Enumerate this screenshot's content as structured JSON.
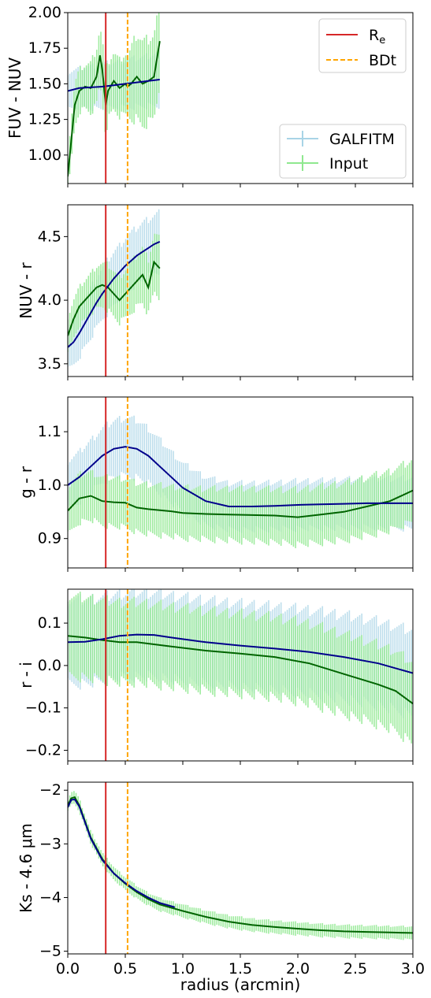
{
  "figure": {
    "xlabel": "radius (arcmin)",
    "xticks": [
      "0.0",
      "0.5",
      "1.0",
      "1.5",
      "2.0",
      "2.5",
      "3.0"
    ],
    "colors": {
      "galfitm_band": "#a8d4e6",
      "galfitm_line": "#00008b",
      "input_band": "#8fe88f",
      "input_line": "#006400",
      "re_line": "#d62728",
      "bdt_line": "#ffa500"
    },
    "legend_top": {
      "re_label": "R",
      "re_sub": "e",
      "bdt_label": "BDt"
    },
    "legend_bottom": {
      "galfitm_label": "GALFITM",
      "input_label": "Input"
    }
  },
  "chart_data": [
    {
      "type": "line",
      "ylabel": "FUV - NUV",
      "xlim": [
        0,
        3.0
      ],
      "ylim": [
        0.8,
        2.0
      ],
      "yticks": [
        "1.00",
        "1.25",
        "1.50",
        "1.75",
        "2.00"
      ],
      "vlines": {
        "Re": 0.33,
        "BDt": 0.52
      },
      "series": [
        {
          "name": "GALFITM",
          "x": [
            0.0,
            0.1,
            0.2,
            0.3,
            0.4,
            0.5,
            0.6,
            0.7,
            0.8
          ],
          "y": [
            1.45,
            1.47,
            1.475,
            1.48,
            1.49,
            1.5,
            1.51,
            1.52,
            1.53
          ],
          "err": [
            0.13,
            0.14,
            0.15,
            0.16,
            0.16,
            0.17,
            0.17,
            0.18,
            0.19
          ]
        },
        {
          "name": "Input",
          "x": [
            0.0,
            0.03,
            0.06,
            0.1,
            0.15,
            0.2,
            0.25,
            0.28,
            0.3,
            0.33,
            0.35,
            0.4,
            0.45,
            0.5,
            0.52,
            0.55,
            0.6,
            0.65,
            0.7,
            0.75,
            0.8
          ],
          "y": [
            0.85,
            1.1,
            1.35,
            1.45,
            1.48,
            1.47,
            1.55,
            1.7,
            1.6,
            1.35,
            1.45,
            1.52,
            1.47,
            1.5,
            1.48,
            1.5,
            1.55,
            1.5,
            1.52,
            1.55,
            1.8
          ],
          "err": [
            0.15,
            0.15,
            0.15,
            0.15,
            0.15,
            0.18,
            0.2,
            0.2,
            0.22,
            0.22,
            0.2,
            0.2,
            0.2,
            0.22,
            0.2,
            0.25,
            0.3,
            0.3,
            0.3,
            0.3,
            0.3
          ]
        }
      ],
      "legend": "top-right"
    },
    {
      "type": "line",
      "ylabel": "NUV - r",
      "xlim": [
        0,
        3.0
      ],
      "ylim": [
        3.4,
        4.75
      ],
      "yticks": [
        "3.5",
        "4.0",
        "4.5"
      ],
      "vlines": {
        "Re": 0.33,
        "BDt": 0.52
      },
      "series": [
        {
          "name": "GALFITM",
          "x": [
            0.0,
            0.05,
            0.1,
            0.15,
            0.2,
            0.25,
            0.3,
            0.35,
            0.4,
            0.45,
            0.5,
            0.55,
            0.6,
            0.65,
            0.7,
            0.75,
            0.8
          ],
          "y": [
            3.63,
            3.67,
            3.74,
            3.82,
            3.9,
            3.98,
            4.05,
            4.11,
            4.17,
            4.22,
            4.27,
            4.31,
            4.35,
            4.38,
            4.41,
            4.44,
            4.46
          ],
          "err": [
            0.18,
            0.18,
            0.19,
            0.19,
            0.2,
            0.2,
            0.2,
            0.21,
            0.21,
            0.21,
            0.22,
            0.22,
            0.22,
            0.23,
            0.23,
            0.23,
            0.24
          ]
        },
        {
          "name": "Input",
          "x": [
            0.0,
            0.05,
            0.1,
            0.15,
            0.2,
            0.25,
            0.3,
            0.35,
            0.4,
            0.45,
            0.5,
            0.55,
            0.6,
            0.65,
            0.7,
            0.75,
            0.8
          ],
          "y": [
            3.72,
            3.85,
            3.95,
            4.0,
            4.05,
            4.1,
            4.12,
            4.1,
            4.05,
            4.0,
            4.05,
            4.1,
            4.15,
            4.2,
            4.1,
            4.3,
            4.25
          ],
          "err": [
            0.15,
            0.15,
            0.15,
            0.16,
            0.16,
            0.17,
            0.17,
            0.18,
            0.18,
            0.18,
            0.19,
            0.2,
            0.2,
            0.22,
            0.22,
            0.23,
            0.24
          ]
        }
      ]
    },
    {
      "type": "line",
      "ylabel": "g - r",
      "xlim": [
        0,
        3.0
      ],
      "ylim": [
        0.845,
        1.165
      ],
      "yticks": [
        "0.9",
        "1.0",
        "1.1"
      ],
      "vlines": {
        "Re": 0.33,
        "BDt": 0.52
      },
      "series": [
        {
          "name": "GALFITM",
          "x": [
            0.0,
            0.1,
            0.2,
            0.3,
            0.4,
            0.5,
            0.6,
            0.7,
            0.8,
            0.9,
            1.0,
            1.2,
            1.4,
            1.6,
            1.8,
            2.0,
            2.2,
            2.4,
            2.6,
            2.8,
            3.0
          ],
          "y": [
            1.0,
            1.015,
            1.035,
            1.055,
            1.068,
            1.072,
            1.068,
            1.055,
            1.035,
            1.015,
            0.995,
            0.97,
            0.96,
            0.96,
            0.961,
            0.963,
            0.964,
            0.965,
            0.966,
            0.966,
            0.966
          ],
          "err": [
            0.045,
            0.047,
            0.049,
            0.051,
            0.053,
            0.055,
            0.054,
            0.052,
            0.05,
            0.048,
            0.046,
            0.045,
            0.044,
            0.044,
            0.044,
            0.045,
            0.045,
            0.046,
            0.046,
            0.047,
            0.047
          ]
        },
        {
          "name": "Input",
          "x": [
            0.0,
            0.1,
            0.2,
            0.3,
            0.4,
            0.5,
            0.6,
            0.7,
            0.8,
            0.9,
            1.0,
            1.2,
            1.4,
            1.6,
            1.8,
            2.0,
            2.2,
            2.4,
            2.6,
            2.8,
            3.0
          ],
          "y": [
            0.952,
            0.975,
            0.98,
            0.97,
            0.968,
            0.967,
            0.958,
            0.955,
            0.953,
            0.951,
            0.948,
            0.946,
            0.945,
            0.944,
            0.943,
            0.94,
            0.945,
            0.95,
            0.96,
            0.97,
            0.99
          ],
          "err": [
            0.045,
            0.045,
            0.045,
            0.045,
            0.046,
            0.046,
            0.046,
            0.047,
            0.047,
            0.047,
            0.048,
            0.048,
            0.049,
            0.05,
            0.05,
            0.052,
            0.053,
            0.054,
            0.055,
            0.056,
            0.057
          ]
        }
      ]
    },
    {
      "type": "line",
      "ylabel": "r - i",
      "xlim": [
        0,
        3.0
      ],
      "ylim": [
        -0.225,
        0.18
      ],
      "yticks": [
        "0.1",
        "0.0",
        "−0.1",
        "−0.2"
      ],
      "ytick_values": [
        0.1,
        0.0,
        -0.1,
        -0.2
      ],
      "vlines": {
        "Re": 0.33,
        "BDt": 0.52
      },
      "series": [
        {
          "name": "GALFITM",
          "x": [
            0.0,
            0.15,
            0.3,
            0.45,
            0.6,
            0.75,
            0.9,
            1.2,
            1.5,
            1.8,
            2.1,
            2.4,
            2.7,
            3.0
          ],
          "y": [
            0.055,
            0.056,
            0.062,
            0.07,
            0.073,
            0.072,
            0.066,
            0.055,
            0.047,
            0.04,
            0.032,
            0.02,
            0.005,
            -0.018
          ],
          "err": [
            0.1,
            0.1,
            0.1,
            0.1,
            0.1,
            0.1,
            0.1,
            0.1,
            0.1,
            0.1,
            0.1,
            0.1,
            0.1,
            0.1
          ]
        },
        {
          "name": "Input",
          "x": [
            0.0,
            0.15,
            0.3,
            0.45,
            0.6,
            0.75,
            0.9,
            1.2,
            1.5,
            1.8,
            2.1,
            2.4,
            2.7,
            2.85,
            3.0
          ],
          "y": [
            0.07,
            0.066,
            0.06,
            0.055,
            0.055,
            0.05,
            0.045,
            0.035,
            0.028,
            0.02,
            0.005,
            -0.02,
            -0.045,
            -0.06,
            -0.09
          ],
          "err": [
            0.095,
            0.095,
            0.095,
            0.095,
            0.095,
            0.095,
            0.095,
            0.095,
            0.095,
            0.095,
            0.095,
            0.095,
            0.095,
            0.095,
            0.095
          ]
        }
      ]
    },
    {
      "type": "line",
      "ylabel": "Ks - 4.6 μm",
      "xlim": [
        0,
        3.0
      ],
      "ylim": [
        -5.05,
        -1.85
      ],
      "yticks": [
        "−2",
        "−3",
        "−4",
        "−5"
      ],
      "ytick_values": [
        -2,
        -3,
        -4,
        -5
      ],
      "vlines": {
        "Re": 0.33,
        "BDt": 0.52
      },
      "series": [
        {
          "name": "GALFITM",
          "x": [
            0.0,
            0.03,
            0.06,
            0.1,
            0.15,
            0.2,
            0.3,
            0.4,
            0.5,
            0.6,
            0.7,
            0.8,
            0.93
          ],
          "y": [
            -2.32,
            -2.18,
            -2.17,
            -2.3,
            -2.6,
            -2.9,
            -3.3,
            -3.55,
            -3.73,
            -3.88,
            -4.0,
            -4.1,
            -4.18
          ],
          "err": [
            0.02,
            0.02,
            0.02,
            0.02,
            0.02,
            0.02,
            0.02,
            0.02,
            0.02,
            0.02,
            0.02,
            0.02,
            0.02
          ]
        },
        {
          "name": "Input",
          "x": [
            0.0,
            0.03,
            0.06,
            0.1,
            0.15,
            0.2,
            0.3,
            0.4,
            0.5,
            0.6,
            0.7,
            0.8,
            1.0,
            1.2,
            1.4,
            1.6,
            1.8,
            2.0,
            2.2,
            2.4,
            2.6,
            2.8,
            3.0
          ],
          "y": [
            -2.28,
            -2.15,
            -2.13,
            -2.28,
            -2.58,
            -2.88,
            -3.28,
            -3.55,
            -3.74,
            -3.9,
            -4.03,
            -4.13,
            -4.25,
            -4.36,
            -4.45,
            -4.51,
            -4.55,
            -4.58,
            -4.61,
            -4.63,
            -4.64,
            -4.65,
            -4.66
          ],
          "err": [
            0.12,
            0.12,
            0.12,
            0.12,
            0.12,
            0.12,
            0.12,
            0.12,
            0.12,
            0.12,
            0.12,
            0.12,
            0.12,
            0.12,
            0.12,
            0.12,
            0.12,
            0.12,
            0.12,
            0.12,
            0.12,
            0.12,
            0.12
          ]
        }
      ]
    }
  ]
}
